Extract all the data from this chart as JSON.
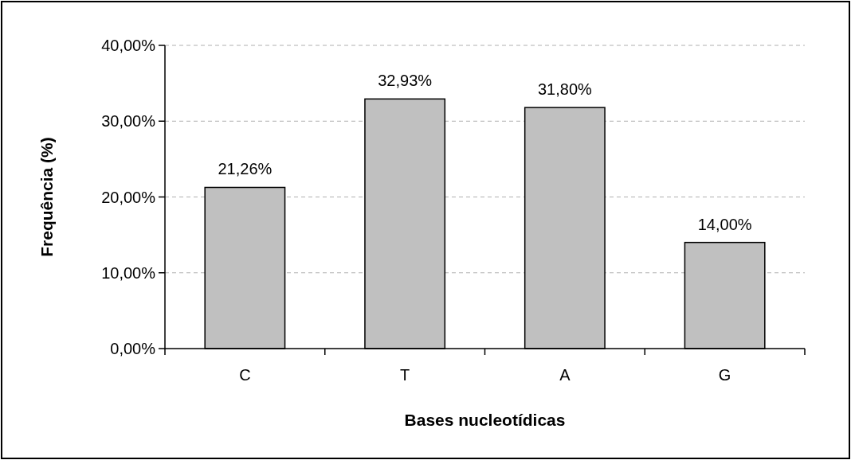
{
  "chart_data": {
    "type": "bar",
    "xlabel": "Bases nucleotídicas",
    "ylabel": "Frequência (%)",
    "categories": [
      "C",
      "T",
      "A",
      "G"
    ],
    "values": [
      21.26,
      32.93,
      31.8,
      14.0
    ],
    "value_labels": [
      "21,26%",
      "32,93%",
      "31,80%",
      "14,00%"
    ],
    "color": "#c0c0c0",
    "ylim": [
      0,
      40
    ],
    "yticks": [
      {
        "value": 0,
        "label": "0,00%"
      },
      {
        "value": 10,
        "label": "10,00%"
      },
      {
        "value": 20,
        "label": "20,00%"
      },
      {
        "value": 30,
        "label": "30,00%"
      },
      {
        "value": 40,
        "label": "40,00%"
      }
    ],
    "grid": "y"
  }
}
